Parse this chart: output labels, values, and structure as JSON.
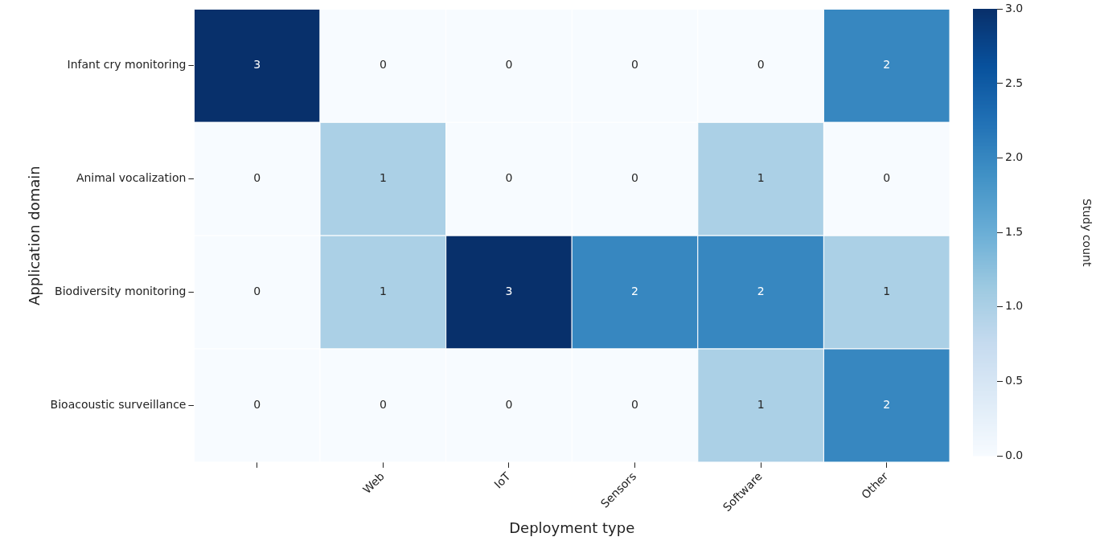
{
  "chart_data": {
    "type": "heatmap",
    "xlabel": "Deployment type",
    "ylabel": "Application domain",
    "clabel": "Study count",
    "categories": [
      null,
      "Web",
      "IoT",
      "Sensors",
      "Software",
      "Other"
    ],
    "y_categories": [
      "Infant cry monitoring",
      "Animal vocalization",
      "Biodiversity monitoring",
      "Bioacoustic surveillance"
    ],
    "cells": [
      [
        3,
        0,
        0,
        0,
        0,
        2
      ],
      [
        0,
        1,
        0,
        0,
        1,
        0
      ],
      [
        0,
        1,
        3,
        2,
        2,
        1
      ],
      [
        0,
        0,
        0,
        0,
        1,
        2
      ]
    ],
    "data_labels": true,
    "clim": [
      0,
      3
    ],
    "cticks": [
      {
        "value": 0,
        "label": "0.0"
      },
      {
        "value": 0.5,
        "label": "0.5"
      },
      {
        "value": 1,
        "label": "1.0"
      },
      {
        "value": 1.5,
        "label": "1.5"
      },
      {
        "value": 2,
        "label": "2.0"
      },
      {
        "value": 2.5,
        "label": "2.5"
      },
      {
        "value": 3,
        "label": "3.0"
      }
    ]
  }
}
